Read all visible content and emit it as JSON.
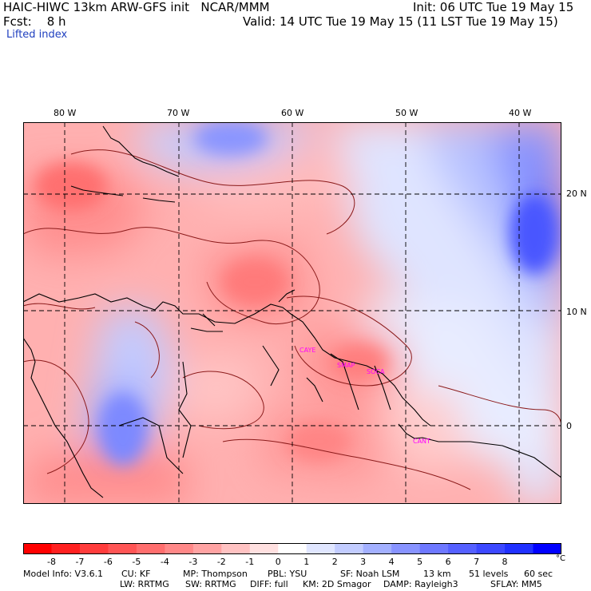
{
  "header": {
    "model_line": "HAIC-HIWC 13km ARW-GFS init   NCAR/MMM",
    "init_line": "Init: 06 UTC Tue 19 May 15",
    "fcst_line": "Fcst:    8 h",
    "valid_line": "Valid: 14 UTC Tue 19 May 15 (11 LST Tue 19 May 15)",
    "field_name": "Lifted index"
  },
  "axes": {
    "lon_labels": [
      "80 W",
      "70 W",
      "60 W",
      "50 W",
      "40 W"
    ],
    "lat_labels": [
      "20 N",
      "10 N",
      "0"
    ]
  },
  "stations": [
    "CAYE",
    "SMAP",
    "SOCA",
    "CANT"
  ],
  "legend": {
    "labels": [
      "-8",
      "-7",
      "-6",
      "-5",
      "-4",
      "-3",
      "-2",
      "-1",
      "0",
      "1",
      "2",
      "3",
      "4",
      "5",
      "6",
      "7",
      "8"
    ],
    "unit": "°C",
    "colors": [
      "#ff0000",
      "#ff2020",
      "#ff3c3c",
      "#ff5555",
      "#ff6e6e",
      "#ff8888",
      "#ffa3a3",
      "#ffc2c2",
      "#ffe0e0",
      "#ffffff",
      "#e0e6ff",
      "#c2ccff",
      "#a3b0ff",
      "#8893ff",
      "#6e78ff",
      "#5560ff",
      "#3c48ff",
      "#2030ff",
      "#0000ff"
    ]
  },
  "footer": {
    "line1": [
      "Model Info: V3.6.1",
      "CU: KF",
      "MP: Thompson",
      "PBL: YSU",
      "SF: Noah LSM",
      "13 km",
      "51 levels",
      "60 sec"
    ],
    "line2": [
      "LW: RRTMG",
      "SW: RRTMG",
      "DIFF: full",
      "KM: 2D Smagor",
      "DAMP: Rayleigh3",
      "SFLAY: MM5"
    ]
  }
}
